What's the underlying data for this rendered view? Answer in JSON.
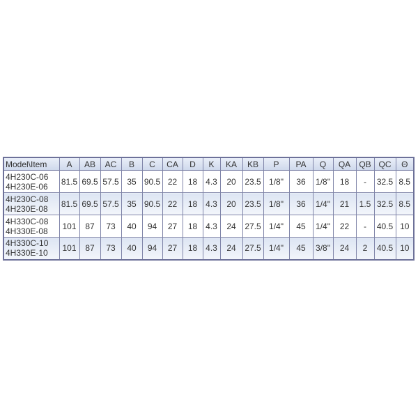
{
  "table": {
    "headers": [
      "Model\\Item",
      "A",
      "AB",
      "AC",
      "B",
      "C",
      "CA",
      "D",
      "K",
      "KA",
      "KB",
      "P",
      "PA",
      "Q",
      "QA",
      "QB",
      "QC",
      "Θ"
    ],
    "rows": [
      {
        "model": [
          "4H230C-06",
          "4H230E-06"
        ],
        "values": [
          "81.5",
          "69.5",
          "57.5",
          "35",
          "90.5",
          "22",
          "18",
          "4.3",
          "20",
          "23.5",
          "1/8\"",
          "36",
          "1/8\"",
          "18",
          "-",
          "32.5",
          "8.5"
        ]
      },
      {
        "model": [
          "4H230C-08",
          "4H230E-08"
        ],
        "values": [
          "81.5",
          "69.5",
          "57.5",
          "35",
          "90.5",
          "22",
          "18",
          "4.3",
          "20",
          "23.5",
          "1/8\"",
          "36",
          "1/4\"",
          "21",
          "1.5",
          "32.5",
          "8.5"
        ]
      },
      {
        "model": [
          "4H330C-08",
          "4H330E-08"
        ],
        "values": [
          "101",
          "87",
          "73",
          "40",
          "94",
          "27",
          "18",
          "4.3",
          "24",
          "27.5",
          "1/4\"",
          "45",
          "1/4\"",
          "22",
          "-",
          "40.5",
          "10"
        ]
      },
      {
        "model": [
          "4H330C-10",
          "4H330E-10"
        ],
        "values": [
          "101",
          "87",
          "73",
          "40",
          "94",
          "27",
          "18",
          "4.3",
          "24",
          "27.5",
          "1/4\"",
          "45",
          "3/8\"",
          "24",
          "2",
          "40.5",
          "10"
        ]
      }
    ]
  }
}
